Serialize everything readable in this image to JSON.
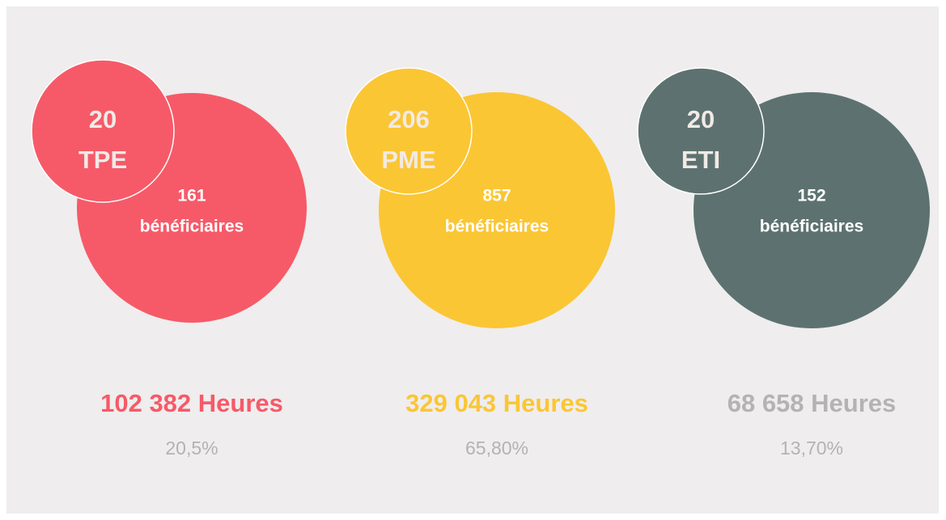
{
  "groups": [
    {
      "count": "20",
      "label": "TPE",
      "beneficiaries": "161",
      "beneficiaries_label": "bénéficiaires",
      "hours": "102 382 Heures",
      "share": "20,5%",
      "color": "#f65a68",
      "hours_color": "#f65a68"
    },
    {
      "count": "206",
      "label": "PME",
      "beneficiaries": "857",
      "beneficiaries_label": "bénéficiaires",
      "hours": "329 043 Heures",
      "share": "65,80%",
      "color": "#fbc634",
      "hours_color": "#fbc634"
    },
    {
      "count": "20",
      "label": "ETI",
      "beneficiaries": "152",
      "beneficiaries_label": "bénéficiaires",
      "hours": "68 658 Heures",
      "share": "13,70%",
      "color": "#5d7270",
      "hours_color": "#b4b2b3"
    }
  ]
}
